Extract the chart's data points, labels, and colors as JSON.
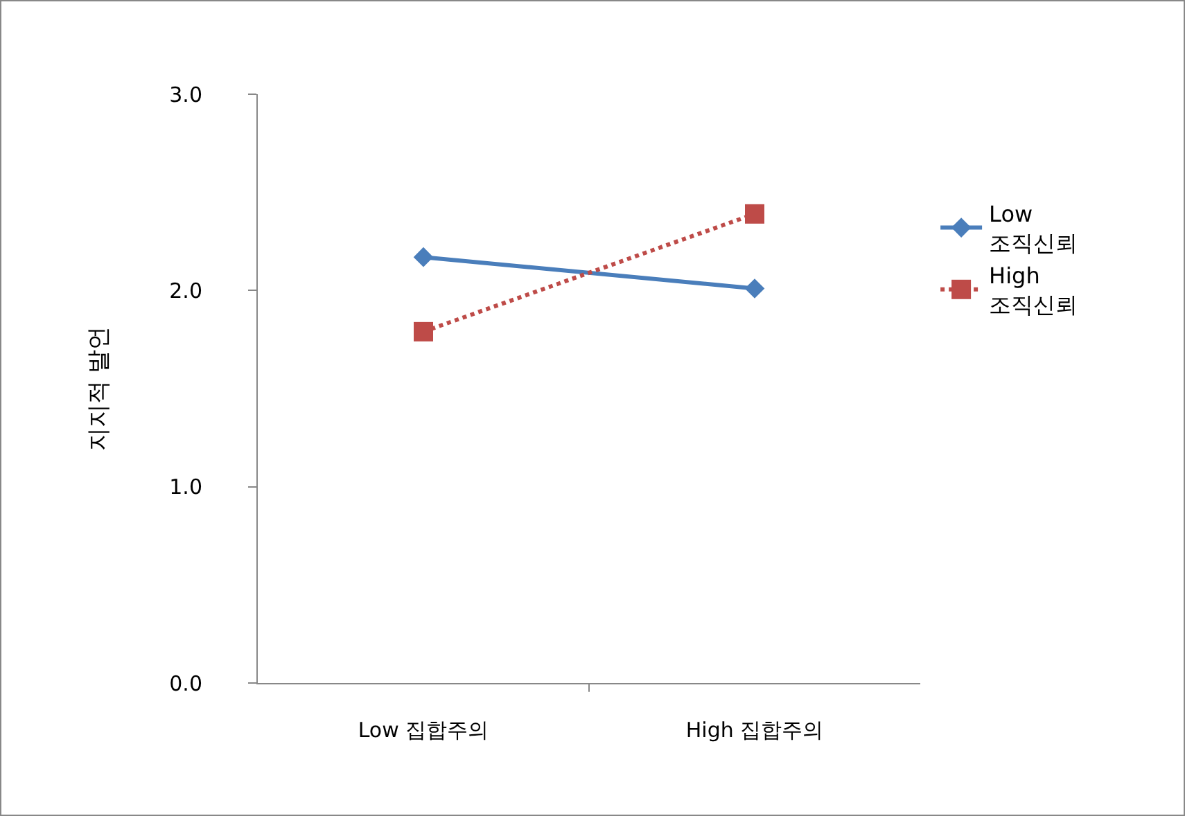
{
  "chart_data": {
    "type": "line",
    "ylabel": "지지적 발언",
    "categories": [
      "Low 집합주의",
      "High 집합주의"
    ],
    "series": [
      {
        "name": "Low 조직신뢰",
        "color": "#4a7ebb",
        "values": [
          2.17,
          2.01
        ],
        "marker": "diamond",
        "line_style": "solid"
      },
      {
        "name": "High 조직신뢰",
        "color": "#be4b48",
        "values": [
          1.79,
          2.39
        ],
        "marker": "square",
        "line_style": "dotted"
      }
    ],
    "ylim": [
      0,
      3
    ],
    "yticks": [
      {
        "value": 0,
        "label": "0.0"
      },
      {
        "value": 1,
        "label": "1.0"
      },
      {
        "value": 2,
        "label": "2.0"
      },
      {
        "value": 3,
        "label": "3.0"
      }
    ],
    "grid": false,
    "legend": "right"
  }
}
